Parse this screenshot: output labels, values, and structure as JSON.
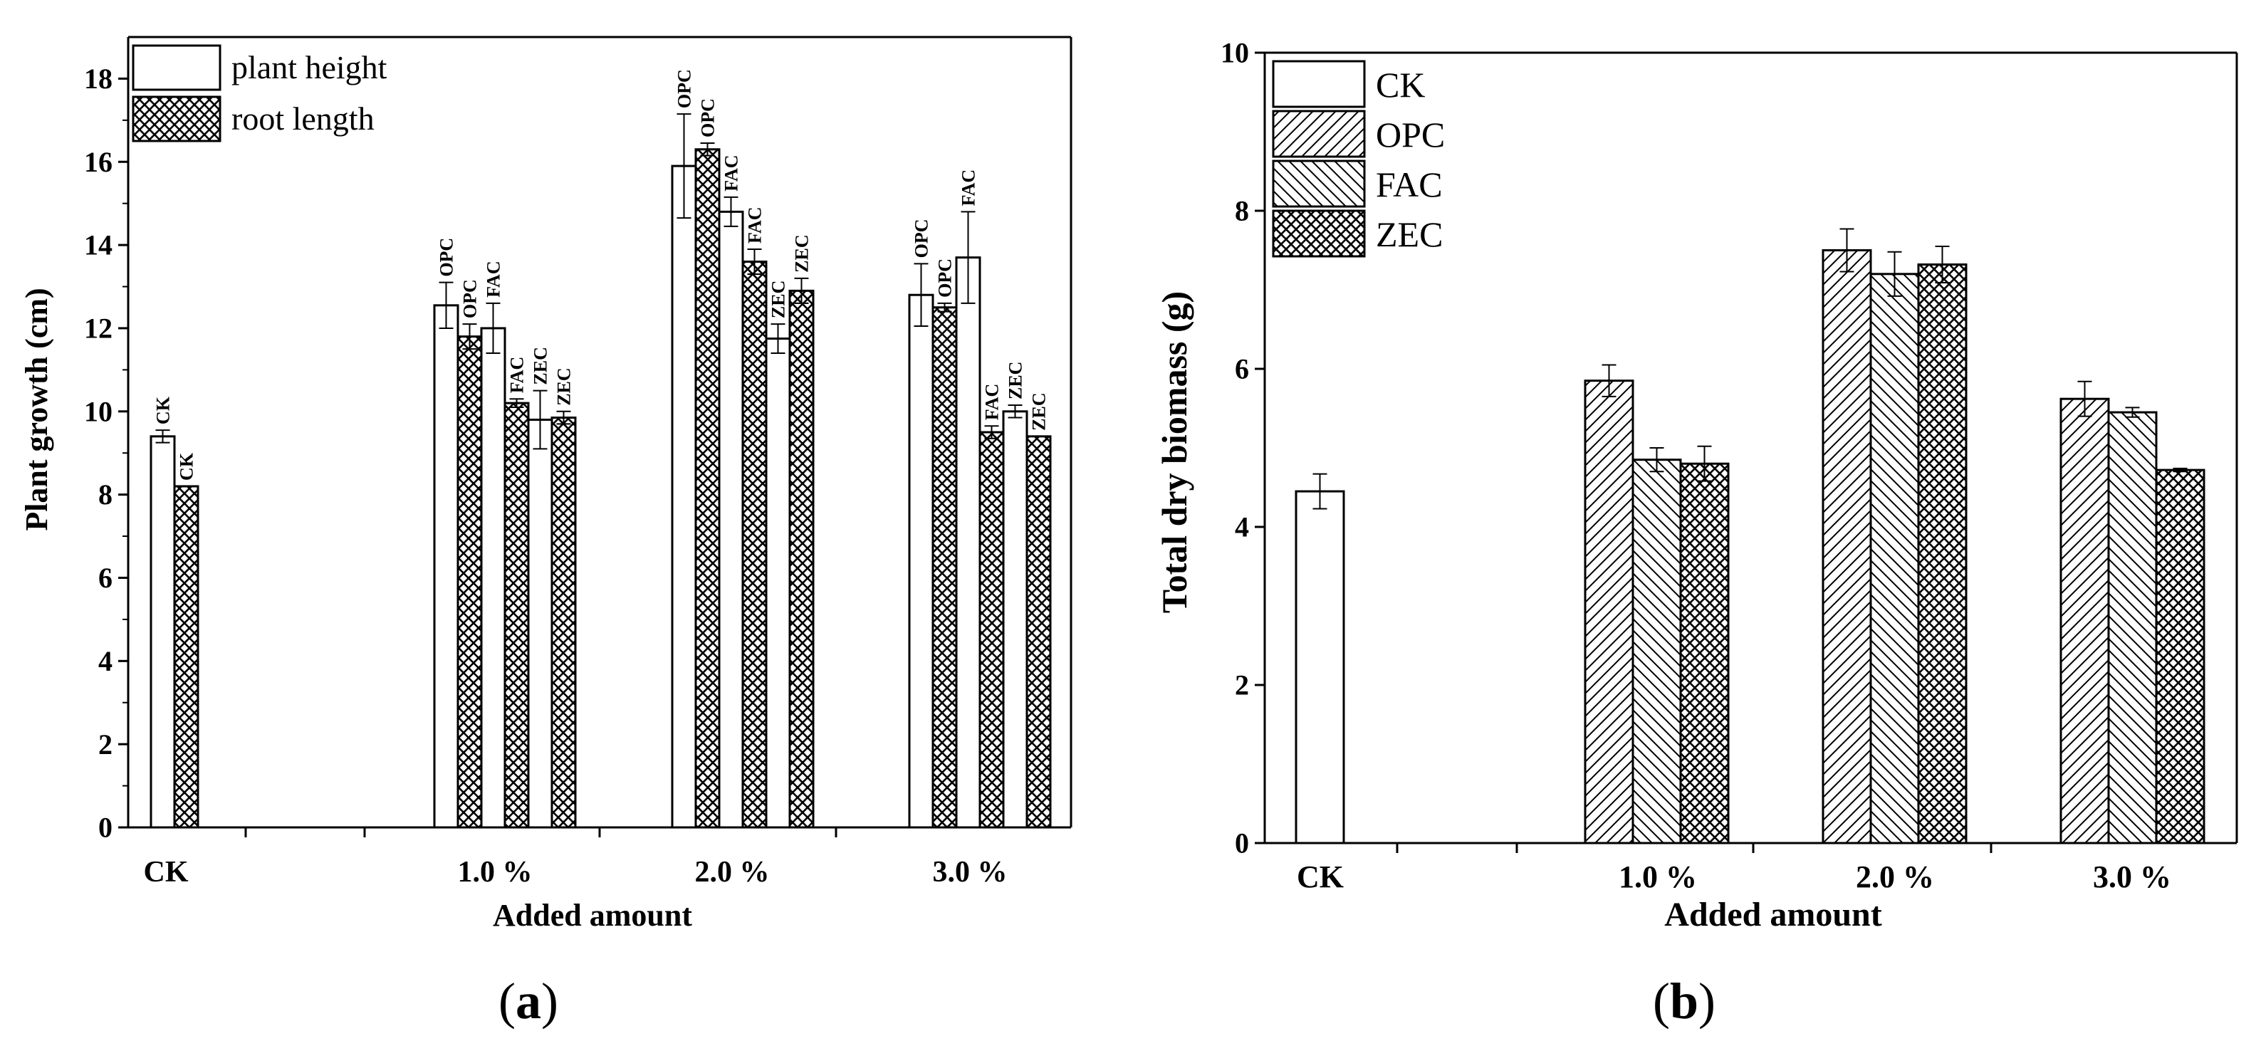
{
  "chart_data": [
    {
      "panel": "(a)",
      "type": "bar",
      "ylabel": "Plant growth (cm)",
      "xlabel": "Added amount",
      "ylim": [
        0,
        19
      ],
      "yticks": [
        "0",
        "2",
        "4",
        "6",
        "8",
        "10",
        "12",
        "14",
        "16",
        "18"
      ],
      "legend": [
        {
          "name": "plant height",
          "pattern": "none"
        },
        {
          "name": "root length",
          "pattern": "crosshatch"
        }
      ],
      "groups": [
        {
          "label": "CK",
          "bars": [
            {
              "treatment": "CK",
              "series": "plant height",
              "value": 9.4,
              "err": 0.15,
              "tag": "CK"
            },
            {
              "treatment": "CK",
              "series": "root length",
              "value": 8.2,
              "err": 0,
              "tag": "CK"
            }
          ]
        },
        {
          "label": "1.0 %",
          "bars": [
            {
              "treatment": "OPC",
              "series": "plant height",
              "value": 12.55,
              "err": 0.55,
              "tag": "OPC"
            },
            {
              "treatment": "OPC",
              "series": "root length",
              "value": 11.8,
              "err": 0.3,
              "tag": "OPC"
            },
            {
              "treatment": "FAC",
              "series": "plant height",
              "value": 12.0,
              "err": 0.6,
              "tag": "FAC"
            },
            {
              "treatment": "FAC",
              "series": "root length",
              "value": 10.2,
              "err": 0.1,
              "tag": "FAC"
            },
            {
              "treatment": "ZEC",
              "series": "plant height",
              "value": 9.8,
              "err": 0.7,
              "tag": "ZEC"
            },
            {
              "treatment": "ZEC",
              "series": "root length",
              "value": 9.85,
              "err": 0.15,
              "tag": "ZEC"
            }
          ]
        },
        {
          "label": "2.0 %",
          "bars": [
            {
              "treatment": "OPC",
              "series": "plant height",
              "value": 15.9,
              "err": 1.25,
              "tag": "OPC"
            },
            {
              "treatment": "OPC",
              "series": "root length",
              "value": 16.3,
              "err": 0.15,
              "tag": "OPC"
            },
            {
              "treatment": "FAC",
              "series": "plant height",
              "value": 14.8,
              "err": 0.35,
              "tag": "FAC"
            },
            {
              "treatment": "FAC",
              "series": "root length",
              "value": 13.6,
              "err": 0.3,
              "tag": "FAC"
            },
            {
              "treatment": "ZEC",
              "series": "plant height",
              "value": 11.75,
              "err": 0.35,
              "tag": "ZEC"
            },
            {
              "treatment": "ZEC",
              "series": "root length",
              "value": 12.9,
              "err": 0.3,
              "tag": "ZEC"
            }
          ]
        },
        {
          "label": "3.0 %",
          "bars": [
            {
              "treatment": "OPC",
              "series": "plant height",
              "value": 12.8,
              "err": 0.75,
              "tag": "OPC"
            },
            {
              "treatment": "OPC",
              "series": "root length",
              "value": 12.5,
              "err": 0.1,
              "tag": "OPC"
            },
            {
              "treatment": "FAC",
              "series": "plant height",
              "value": 13.7,
              "err": 1.1,
              "tag": "FAC"
            },
            {
              "treatment": "FAC",
              "series": "root length",
              "value": 9.5,
              "err": 0.15,
              "tag": "FAC"
            },
            {
              "treatment": "ZEC",
              "series": "plant height",
              "value": 10.0,
              "err": 0.15,
              "tag": "ZEC"
            },
            {
              "treatment": "ZEC",
              "series": "root length",
              "value": 9.4,
              "err": 0,
              "tag": "ZEC"
            }
          ]
        }
      ]
    },
    {
      "panel": "(b)",
      "type": "bar",
      "ylabel": "Total dry biomass (g)",
      "xlabel": "Added amount",
      "ylim": [
        0,
        10
      ],
      "yticks": [
        "0",
        "2",
        "4",
        "6",
        "8",
        "10"
      ],
      "legend": [
        {
          "name": "CK",
          "pattern": "none"
        },
        {
          "name": "OPC",
          "pattern": "forward-diagonal"
        },
        {
          "name": "FAC",
          "pattern": "back-diagonal"
        },
        {
          "name": "ZEC",
          "pattern": "crosshatch"
        }
      ],
      "groups": [
        {
          "label": "CK",
          "bars": [
            {
              "series": "CK",
              "value": 4.45,
              "err": 0.22
            }
          ]
        },
        {
          "label": "1.0 %",
          "bars": [
            {
              "series": "OPC",
              "value": 5.85,
              "err": 0.2
            },
            {
              "series": "FAC",
              "value": 4.85,
              "err": 0.15
            },
            {
              "series": "ZEC",
              "value": 4.8,
              "err": 0.22
            }
          ]
        },
        {
          "label": "2.0 %",
          "bars": [
            {
              "series": "OPC",
              "value": 7.5,
              "err": 0.27
            },
            {
              "series": "FAC",
              "value": 7.2,
              "err": 0.28
            },
            {
              "series": "ZEC",
              "value": 7.32,
              "err": 0.23
            }
          ]
        },
        {
          "label": "3.0 %",
          "bars": [
            {
              "series": "OPC",
              "value": 5.62,
              "err": 0.22
            },
            {
              "series": "FAC",
              "value": 5.45,
              "err": 0.06
            },
            {
              "series": "ZEC",
              "value": 4.72,
              "err": 0.02
            }
          ]
        }
      ]
    }
  ]
}
